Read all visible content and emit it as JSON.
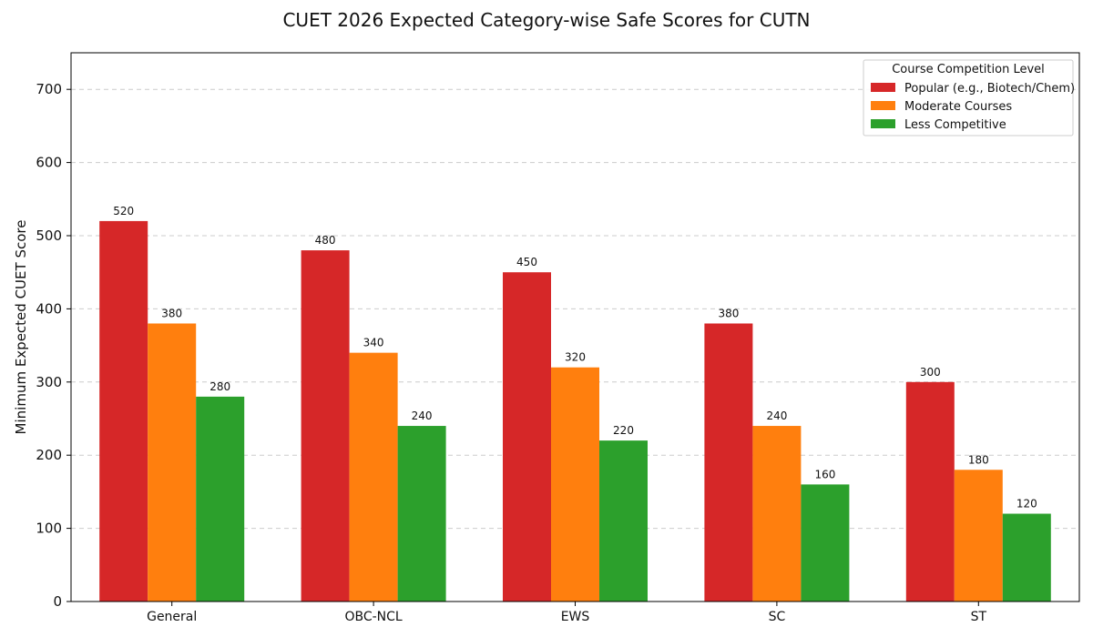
{
  "chart_data": {
    "type": "bar",
    "title": "CUET 2026 Expected Category-wise Safe Scores for CUTN",
    "xlabel": "",
    "ylabel": "Minimum Expected CUET Score",
    "ylim": [
      0,
      750
    ],
    "yticks": [
      0,
      100,
      200,
      300,
      400,
      500,
      600,
      700
    ],
    "grid": true,
    "legend": {
      "title": "Course Competition Level",
      "placement": "top-right"
    },
    "categories": [
      "General",
      "OBC-NCL",
      "EWS",
      "SC",
      "ST"
    ],
    "series": [
      {
        "name": "Popular (e.g., Biotech/Chem)",
        "color": "#d62728",
        "values": [
          520,
          480,
          450,
          380,
          300
        ]
      },
      {
        "name": "Moderate Courses",
        "color": "#ff7f0e",
        "values": [
          380,
          340,
          320,
          240,
          180
        ]
      },
      {
        "name": "Less Competitive",
        "color": "#2ca02c",
        "values": [
          280,
          240,
          220,
          160,
          120
        ]
      }
    ]
  }
}
